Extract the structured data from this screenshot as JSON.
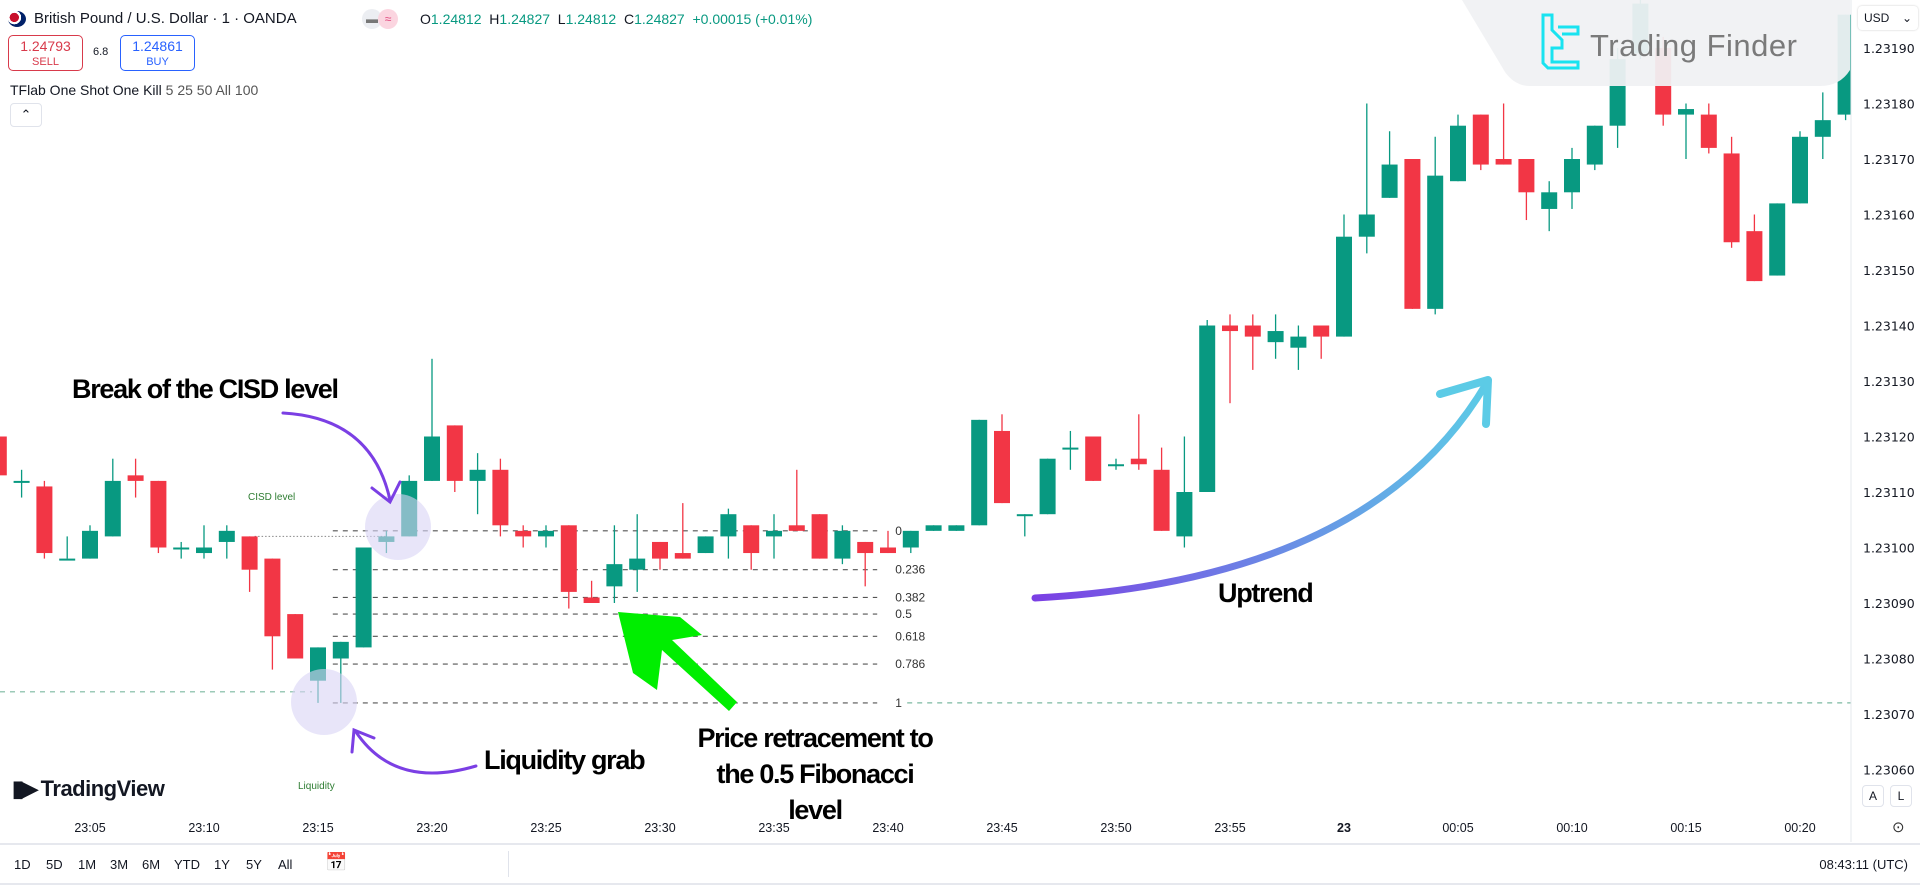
{
  "header": {
    "symbol_title": "British Pound / U.S. Dollar · 1 · OANDA",
    "ohlc": {
      "o_label": "O",
      "o": "1.24812",
      "h_label": "H",
      "h": "1.24827",
      "l_label": "L",
      "l": "1.24812",
      "c_label": "C",
      "c": "1.24827",
      "change": "+0.00015 (+0.01%)"
    },
    "sell": {
      "price": "1.24793",
      "label": "SELL"
    },
    "buy": {
      "price": "1.24861",
      "label": "BUY"
    },
    "spread": "6.8",
    "indicator": {
      "name": "TFlab One Shot One Kill",
      "params": "5 25 50 All 100"
    },
    "collapse_icon": "chevron-up-icon"
  },
  "watermark": {
    "brand": "Trading Finder"
  },
  "tradingview_logo": "TradingView",
  "price_axis": {
    "currency": "USD",
    "labels": [
      "1.23190",
      "1.23180",
      "1.23170",
      "1.23160",
      "1.23150",
      "1.23140",
      "1.23130",
      "1.23120",
      "1.23110",
      "1.23100",
      "1.23090",
      "1.23080",
      "1.23070",
      "1.23060"
    ],
    "auto_label": "A",
    "log_label": "L"
  },
  "time_axis": {
    "ticks": [
      {
        "label": "23:05",
        "at": "23:05"
      },
      {
        "label": "23:10",
        "at": "23:10"
      },
      {
        "label": "23:15",
        "at": "23:15"
      },
      {
        "label": "23:20",
        "at": "23:20"
      },
      {
        "label": "23:25",
        "at": "23:25"
      },
      {
        "label": "23:30",
        "at": "23:30"
      },
      {
        "label": "23:35",
        "at": "23:35"
      },
      {
        "label": "23:40",
        "at": "23:40"
      },
      {
        "label": "23:45",
        "at": "23:45"
      },
      {
        "label": "23:50",
        "at": "23:50"
      },
      {
        "label": "23:55",
        "at": "23:55"
      },
      {
        "label": "23",
        "at": "00:00"
      },
      {
        "label": "00:05",
        "at": "00:05"
      },
      {
        "label": "00:10",
        "at": "00:10"
      },
      {
        "label": "00:15",
        "at": "00:15"
      },
      {
        "label": "00:20",
        "at": "00:20"
      }
    ]
  },
  "bottom_bar": {
    "ranges": [
      "1D",
      "5D",
      "1M",
      "3M",
      "6M",
      "YTD",
      "1Y",
      "5Y",
      "All"
    ],
    "clock": "08:43:11 (UTC)"
  },
  "annotations": {
    "break_cisd": "Break of the CISD level",
    "cisd_label": "CISD level",
    "liquidity_grab": "Liquidity grab",
    "liquidity_label": "Liquidity",
    "retracement": [
      "Price retracement to",
      "the 0.5 Fibonacci",
      "level"
    ],
    "uptrend": "Uptrend"
  },
  "colors": {
    "up": "#089981",
    "down": "#f23645",
    "annotation_arrow": "#7b3fe4",
    "retracement_arrow": "#00ee00",
    "uptrend_start": "#7b3fe4",
    "uptrend_end": "#5ccbe6",
    "liquidity_line": "#7cb8a0",
    "highlight_circle": "#d9d4f5"
  },
  "chart_data": {
    "type": "candlestick",
    "ylim": [
      1.23055,
      1.23195
    ],
    "price_ticks": [
      1.2319,
      1.2318,
      1.2317,
      1.2316,
      1.2315,
      1.2314,
      1.2313,
      1.2312,
      1.2311,
      1.231,
      1.2309,
      1.2308,
      1.2307,
      1.2306
    ],
    "candles_columns": [
      "time",
      "open",
      "high",
      "low",
      "close"
    ],
    "candles": [
      [
        "23:01",
        1.2312,
        1.23122,
        1.23112,
        1.23113
      ],
      [
        "23:02",
        1.23112,
        1.23114,
        1.23109,
        1.23112
      ],
      [
        "23:03",
        1.23111,
        1.23112,
        1.23098,
        1.23099
      ],
      [
        "23:04",
        1.23098,
        1.23102,
        1.23098,
        1.23098
      ],
      [
        "23:05",
        1.23098,
        1.23104,
        1.23098,
        1.23103
      ],
      [
        "23:06",
        1.23102,
        1.23116,
        1.23102,
        1.23112
      ],
      [
        "23:07",
        1.23113,
        1.23116,
        1.23109,
        1.23112
      ],
      [
        "23:08",
        1.23112,
        1.23112,
        1.23099,
        1.231
      ],
      [
        "23:09",
        1.231,
        1.23101,
        1.23098,
        1.231
      ],
      [
        "23:10",
        1.23099,
        1.23104,
        1.23098,
        1.231
      ],
      [
        "23:11",
        1.23101,
        1.23104,
        1.23098,
        1.23103
      ],
      [
        "23:12",
        1.23102,
        1.23102,
        1.23092,
        1.23096
      ],
      [
        "23:13",
        1.23098,
        1.23098,
        1.23078,
        1.23084
      ],
      [
        "23:14",
        1.23088,
        1.23088,
        1.2308,
        1.2308
      ],
      [
        "23:15",
        1.23076,
        1.23082,
        1.23072,
        1.23082
      ],
      [
        "23:16",
        1.2308,
        1.23083,
        1.23072,
        1.23083
      ],
      [
        "23:17",
        1.23082,
        1.231,
        1.23082,
        1.231
      ],
      [
        "23:18",
        1.23101,
        1.23103,
        1.23099,
        1.23102
      ],
      [
        "23:19",
        1.23102,
        1.23113,
        1.23102,
        1.23112
      ],
      [
        "23:20",
        1.23112,
        1.23134,
        1.23112,
        1.2312
      ],
      [
        "23:21",
        1.23122,
        1.23122,
        1.2311,
        1.23112
      ],
      [
        "23:22",
        1.23112,
        1.23117,
        1.23106,
        1.23114
      ],
      [
        "23:23",
        1.23114,
        1.23116,
        1.23102,
        1.23104
      ],
      [
        "23:24",
        1.23103,
        1.23104,
        1.231,
        1.23102
      ],
      [
        "23:25",
        1.23102,
        1.23104,
        1.231,
        1.23103
      ],
      [
        "23:26",
        1.23104,
        1.23104,
        1.23089,
        1.23092
      ],
      [
        "23:27",
        1.23091,
        1.23094,
        1.2309,
        1.2309
      ],
      [
        "23:28",
        1.23093,
        1.23104,
        1.2309,
        1.23097
      ],
      [
        "23:29",
        1.23096,
        1.23106,
        1.23092,
        1.23098
      ],
      [
        "23:30",
        1.23101,
        1.23101,
        1.23096,
        1.23098
      ],
      [
        "23:31",
        1.23099,
        1.23108,
        1.23098,
        1.23098
      ],
      [
        "23:32",
        1.23099,
        1.23102,
        1.23099,
        1.23102
      ],
      [
        "23:33",
        1.23102,
        1.23107,
        1.23098,
        1.23106
      ],
      [
        "23:34",
        1.23104,
        1.23104,
        1.23096,
        1.23099
      ],
      [
        "23:35",
        1.23102,
        1.23106,
        1.23098,
        1.23103
      ],
      [
        "23:36",
        1.23104,
        1.23114,
        1.23103,
        1.23103
      ],
      [
        "23:37",
        1.23106,
        1.23106,
        1.23098,
        1.23098
      ],
      [
        "23:38",
        1.23098,
        1.23104,
        1.23097,
        1.23103
      ],
      [
        "23:39",
        1.23101,
        1.23101,
        1.23093,
        1.23099
      ],
      [
        "23:40",
        1.231,
        1.23103,
        1.23099,
        1.23099
      ],
      [
        "23:41",
        1.231,
        1.23103,
        1.23099,
        1.23103
      ],
      [
        "23:42",
        1.23103,
        1.23104,
        1.23103,
        1.23104
      ],
      [
        "23:43",
        1.23103,
        1.23104,
        1.23103,
        1.23104
      ],
      [
        "23:44",
        1.23104,
        1.23123,
        1.23104,
        1.23123
      ],
      [
        "23:45",
        1.23121,
        1.23124,
        1.23108,
        1.23108
      ],
      [
        "23:46",
        1.23106,
        1.23106,
        1.23102,
        1.23106
      ],
      [
        "23:47",
        1.23106,
        1.23116,
        1.23106,
        1.23116
      ],
      [
        "23:48",
        1.23118,
        1.23121,
        1.23114,
        1.23118
      ],
      [
        "23:49",
        1.2312,
        1.2312,
        1.23112,
        1.23112
      ],
      [
        "23:50",
        1.23115,
        1.23116,
        1.23114,
        1.23115
      ],
      [
        "23:51",
        1.23116,
        1.23124,
        1.23114,
        1.23115
      ],
      [
        "23:52",
        1.23114,
        1.23118,
        1.23103,
        1.23103
      ],
      [
        "23:53",
        1.23102,
        1.2312,
        1.231,
        1.2311
      ],
      [
        "23:54",
        1.2311,
        1.23141,
        1.2311,
        1.2314
      ],
      [
        "23:55",
        1.2314,
        1.23142,
        1.23126,
        1.23139
      ],
      [
        "23:56",
        1.2314,
        1.23142,
        1.23132,
        1.23138
      ],
      [
        "23:57",
        1.23137,
        1.23142,
        1.23134,
        1.23139
      ],
      [
        "23:58",
        1.23136,
        1.2314,
        1.23132,
        1.23138
      ],
      [
        "23:59",
        1.2314,
        1.2314,
        1.23134,
        1.23138
      ],
      [
        "00:00",
        1.23138,
        1.2316,
        1.23138,
        1.23156
      ],
      [
        "00:01",
        1.23156,
        1.2318,
        1.23153,
        1.2316
      ],
      [
        "00:02",
        1.23163,
        1.23175,
        1.23163,
        1.23169
      ],
      [
        "00:03",
        1.2317,
        1.2317,
        1.23143,
        1.23143
      ],
      [
        "00:04",
        1.23143,
        1.23174,
        1.23142,
        1.23167
      ],
      [
        "00:05",
        1.23166,
        1.23178,
        1.23166,
        1.23176
      ],
      [
        "00:06",
        1.23178,
        1.23178,
        1.23168,
        1.23169
      ],
      [
        "00:07",
        1.2317,
        1.2318,
        1.23169,
        1.23169
      ],
      [
        "00:08",
        1.2317,
        1.2317,
        1.23159,
        1.23164
      ],
      [
        "00:09",
        1.23161,
        1.23166,
        1.23157,
        1.23164
      ],
      [
        "00:10",
        1.23164,
        1.23172,
        1.23161,
        1.2317
      ],
      [
        "00:11",
        1.23169,
        1.23176,
        1.23168,
        1.23176
      ],
      [
        "00:12",
        1.23176,
        1.2319,
        1.23172,
        1.23188
      ],
      [
        "00:13",
        1.23189,
        1.232,
        1.23188,
        1.23198
      ],
      [
        "00:14",
        1.2319,
        1.23192,
        1.23176,
        1.23178
      ],
      [
        "00:15",
        1.23178,
        1.2318,
        1.2317,
        1.23179
      ],
      [
        "00:16",
        1.23178,
        1.2318,
        1.23171,
        1.23172
      ],
      [
        "00:17",
        1.23171,
        1.23174,
        1.23154,
        1.23155
      ],
      [
        "00:18",
        1.23157,
        1.2316,
        1.23148,
        1.23148
      ],
      [
        "00:19",
        1.23149,
        1.23162,
        1.23149,
        1.23162
      ],
      [
        "00:20",
        1.23162,
        1.23175,
        1.23162,
        1.23174
      ],
      [
        "00:21",
        1.23174,
        1.23182,
        1.2317,
        1.23177
      ],
      [
        "00:22",
        1.23178,
        1.23196,
        1.23177,
        1.23196
      ]
    ],
    "fibonacci": {
      "from_time": "23:16",
      "to_time": "23:39",
      "levels": [
        {
          "label": "0",
          "price": 1.23103
        },
        {
          "label": "0.236",
          "price": 1.23096
        },
        {
          "label": "0.382",
          "price": 1.23091
        },
        {
          "label": "0.5",
          "price": 1.23088
        },
        {
          "label": "0.618",
          "price": 1.23084
        },
        {
          "label": "0.786",
          "price": 1.23079
        },
        {
          "label": "1",
          "price": 1.23072
        }
      ]
    },
    "cisd_level": {
      "price": 1.23102,
      "from_time": "23:12",
      "to_time": "23:18"
    },
    "liquidity_level": {
      "price": 1.23074
    }
  }
}
